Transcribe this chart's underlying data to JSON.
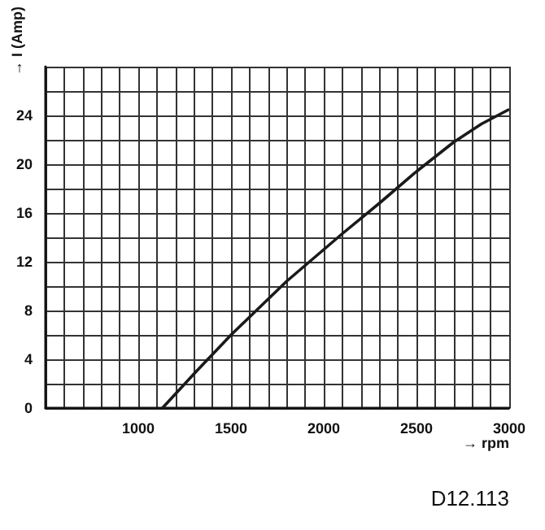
{
  "chart_data": {
    "type": "line",
    "xlabel": "→ rpm",
    "ylabel": "→ I (Amp)",
    "annotations": [
      "D12.113"
    ],
    "series": [
      {
        "color": "#1a1a1a",
        "x": [
          1130,
          1300,
          1500,
          1800,
          2000,
          2100,
          2300,
          2500,
          2700,
          2850,
          3000
        ],
        "values": [
          0,
          2.8,
          6,
          10.4,
          13,
          14.3,
          16.8,
          19.4,
          21.8,
          23.3,
          24.5
        ]
      }
    ],
    "xlim": [
      500,
      3000
    ],
    "xticks": [
      {
        "value": 500,
        "label": null
      },
      {
        "value": 600,
        "label": null
      },
      {
        "value": 700,
        "label": null
      },
      {
        "value": 800,
        "label": null
      },
      {
        "value": 900,
        "label": null
      },
      1000,
      {
        "value": 1100,
        "label": null
      },
      {
        "value": 1200,
        "label": null
      },
      {
        "value": 1300,
        "label": null
      },
      {
        "value": 1400,
        "label": null
      },
      1500,
      {
        "value": 1600,
        "label": null
      },
      {
        "value": 1700,
        "label": null
      },
      {
        "value": 1800,
        "label": null
      },
      {
        "value": 1900,
        "label": null
      },
      2000,
      {
        "value": 2100,
        "label": null
      },
      {
        "value": 2200,
        "label": null
      },
      {
        "value": 2300,
        "label": null
      },
      {
        "value": 2400,
        "label": null
      },
      2500,
      {
        "value": 2600,
        "label": null
      },
      {
        "value": 2700,
        "label": null
      },
      {
        "value": 2800,
        "label": null
      },
      {
        "value": 2900,
        "label": null
      },
      3000
    ],
    "ylim": [
      0,
      28
    ],
    "yticks": [
      0,
      {
        "value": 2,
        "label": null
      },
      4,
      {
        "value": 6,
        "label": null
      },
      8,
      {
        "value": 10,
        "label": null
      },
      12,
      {
        "value": 14,
        "label": null
      },
      16,
      {
        "value": 18,
        "label": null
      },
      20,
      {
        "value": 22,
        "label": null
      },
      24,
      {
        "value": 26,
        "label": null
      },
      {
        "value": 28,
        "label": null
      }
    ],
    "grid": true,
    "marker": "none",
    "line_style": "solid"
  }
}
